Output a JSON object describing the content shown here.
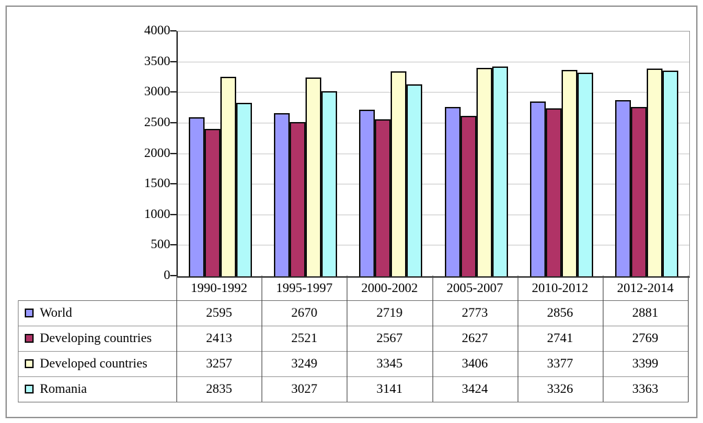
{
  "chart_data": {
    "type": "bar",
    "title": "",
    "categories": [
      "1990-1992",
      "1995-1997",
      "2000-2002",
      "2005-2007",
      "2010-2012",
      "2012-2014"
    ],
    "series": [
      {
        "name": "World",
        "color": "#9999FF",
        "values": [
          2595,
          2670,
          2719,
          2773,
          2856,
          2881
        ]
      },
      {
        "name": "Developing countries",
        "color": "#B03366",
        "values": [
          2413,
          2521,
          2567,
          2627,
          2741,
          2769
        ]
      },
      {
        "name": "Developed countries",
        "color": "#FDFDCE",
        "values": [
          3257,
          3249,
          3345,
          3406,
          3377,
          3399
        ]
      },
      {
        "name": "Romania",
        "color": "#B0FAFA",
        "values": [
          2835,
          3027,
          3141,
          3424,
          3326,
          3363
        ]
      }
    ],
    "ylim": [
      0,
      4000
    ],
    "ytick_step": 500,
    "grid": true,
    "legend_position": "data-table-left",
    "data_table_shown": true,
    "bar_border_color": "#101010"
  }
}
